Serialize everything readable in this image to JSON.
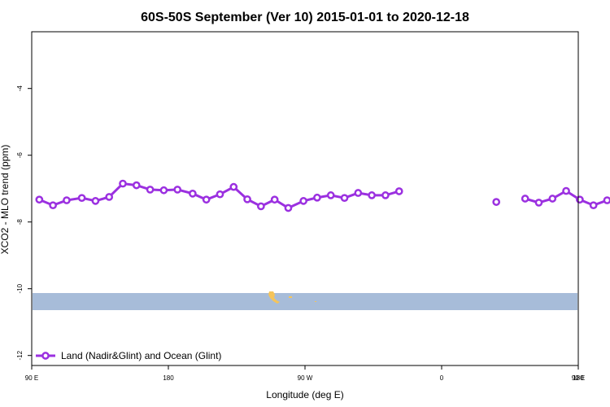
{
  "chart_data": {
    "type": "line",
    "title": "60S-50S September (Ver 10)   2015-01-01 to 2020-12-18",
    "xlabel": "Longitude (deg E)",
    "ylabel": "XCO2 - MLO trend (ppm)",
    "xlim": [
      90,
      450
    ],
    "ylim": [
      -12.3,
      -2.3
    ],
    "x_ticks": [
      {
        "value": 90,
        "label": "90 E"
      },
      {
        "value": 180,
        "label": "180"
      },
      {
        "value": 270,
        "label": "90 W"
      },
      {
        "value": 360,
        "label": "0"
      },
      {
        "value": 450,
        "label": "90 E"
      },
      {
        "value": 540,
        "label": "180"
      }
    ],
    "y_ticks": [
      -12,
      -10,
      -8,
      -6,
      -4
    ],
    "series": [
      {
        "name": "Land (Nadir&Glint) and Ocean (Glint)",
        "color": "#9b30e0",
        "segments": [
          [
            {
              "x": 95,
              "y": -7.33
            },
            {
              "x": 104,
              "y": -7.5
            },
            {
              "x": 113,
              "y": -7.35
            },
            {
              "x": 123,
              "y": -7.28
            },
            {
              "x": 132,
              "y": -7.37
            },
            {
              "x": 141,
              "y": -7.25
            },
            {
              "x": 150,
              "y": -6.85
            },
            {
              "x": 159,
              "y": -6.9
            },
            {
              "x": 168,
              "y": -7.03
            },
            {
              "x": 177,
              "y": -7.05
            },
            {
              "x": 186,
              "y": -7.03
            },
            {
              "x": 196,
              "y": -7.15
            },
            {
              "x": 205,
              "y": -7.33
            },
            {
              "x": 214,
              "y": -7.17
            },
            {
              "x": 223,
              "y": -6.95
            },
            {
              "x": 232,
              "y": -7.32
            },
            {
              "x": 241,
              "y": -7.53
            },
            {
              "x": 250,
              "y": -7.33
            },
            {
              "x": 259,
              "y": -7.58
            },
            {
              "x": 269,
              "y": -7.37
            },
            {
              "x": 278,
              "y": -7.27
            },
            {
              "x": 287,
              "y": -7.2
            },
            {
              "x": 296,
              "y": -7.28
            },
            {
              "x": 305,
              "y": -7.13
            },
            {
              "x": 314,
              "y": -7.2
            },
            {
              "x": 323,
              "y": -7.2
            },
            {
              "x": 332,
              "y": -7.08
            }
          ],
          [
            {
              "x": 396,
              "y": -7.4
            }
          ],
          [
            {
              "x": 415,
              "y": -7.3
            },
            {
              "x": 424,
              "y": -7.42
            },
            {
              "x": 433,
              "y": -7.3
            },
            {
              "x": 442,
              "y": -7.07
            },
            {
              "x": 451,
              "y": -7.33
            },
            {
              "x": 460,
              "y": -7.5
            },
            {
              "x": 469,
              "y": -7.35
            },
            {
              "x": 478,
              "y": -7.28
            },
            {
              "x": 487,
              "y": -7.38
            },
            {
              "x": 496,
              "y": -7.25
            },
            {
              "x": 506,
              "y": -6.85
            },
            {
              "x": 515,
              "y": -6.9
            },
            {
              "x": 524,
              "y": -7.03
            }
          ]
        ]
      }
    ],
    "grid": false,
    "legend_position": "bottom-left",
    "map_band": {
      "ocean_color": "#a7bcd9",
      "land_color": "#f5c45a",
      "lat_range": [
        -60,
        -50
      ]
    }
  }
}
